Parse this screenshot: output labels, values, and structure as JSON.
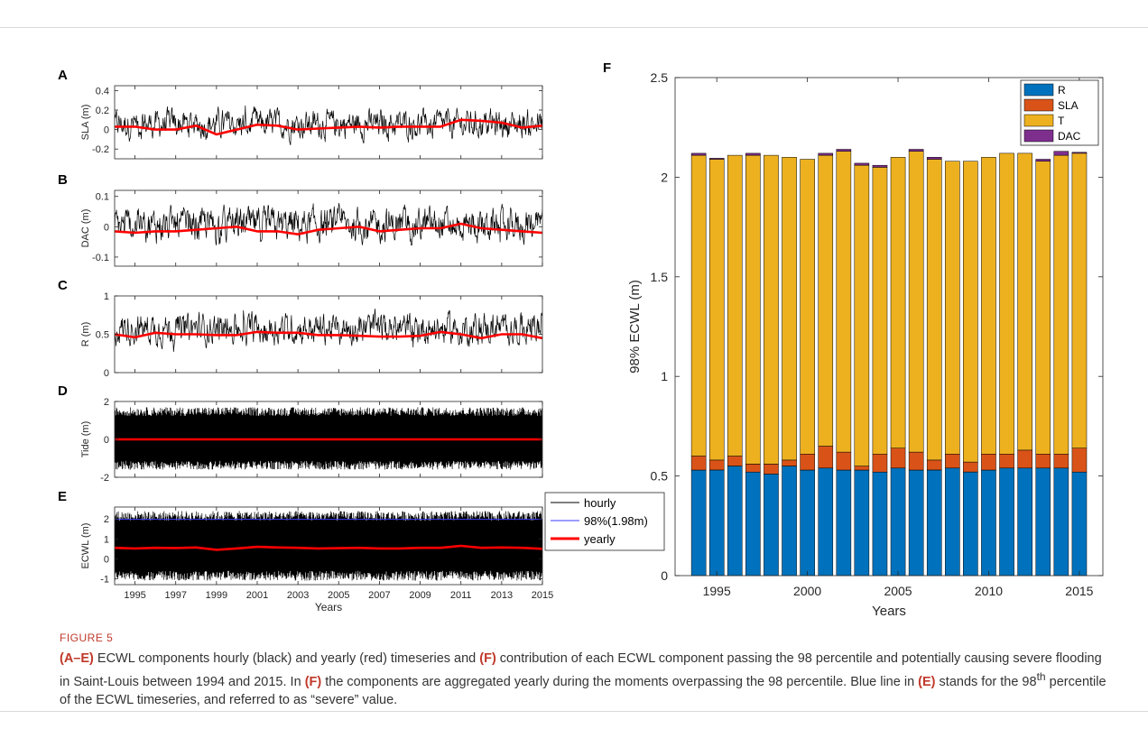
{
  "colors": {
    "hourly": "#000000",
    "yearly": "#ff0000",
    "threshold": "#3b3bff",
    "R": "#0072bd",
    "SLA": "#d95319",
    "T": "#edb120",
    "DAC": "#7e2f8e",
    "caption_accent": "#c0392b"
  },
  "chart_data": [
    {
      "panel": "A",
      "type": "line",
      "ylabel": "SLA (m)",
      "xlim": [
        1994,
        2015
      ],
      "ylim": [
        -0.3,
        0.45
      ],
      "yticks": [
        "-0.2",
        "0",
        "0.2",
        "0.4"
      ],
      "ytick_values": [
        -0.2,
        0,
        0.2,
        0.4
      ],
      "hourly_range": [
        -0.22,
        0.33
      ],
      "yearly": {
        "x": [
          1994,
          1995,
          1996,
          1997,
          1998,
          1999,
          2000,
          2001,
          2002,
          2003,
          2004,
          2005,
          2006,
          2007,
          2008,
          2009,
          2010,
          2011,
          2012,
          2013,
          2014,
          2015
        ],
        "y": [
          0.03,
          0.03,
          0.0,
          0.0,
          0.04,
          -0.05,
          0.0,
          0.05,
          0.04,
          0.0,
          0.01,
          0.02,
          0.03,
          0.02,
          0.03,
          0.03,
          0.03,
          0.1,
          0.09,
          0.07,
          0.02,
          0.04
        ]
      }
    },
    {
      "panel": "B",
      "type": "line",
      "ylabel": "DAC (m)",
      "xlim": [
        1994,
        2015
      ],
      "ylim": [
        -0.13,
        0.12
      ],
      "yticks": [
        "-0.1",
        "0",
        "0.1"
      ],
      "ytick_values": [
        -0.1,
        0,
        0.1
      ],
      "hourly_range": [
        -0.1,
        0.11
      ],
      "yearly": {
        "x": [
          1994,
          1995,
          1996,
          1997,
          1998,
          1999,
          2000,
          2001,
          2002,
          2003,
          2004,
          2005,
          2006,
          2007,
          2008,
          2009,
          2010,
          2011,
          2012,
          2013,
          2014,
          2015
        ],
        "y": [
          -0.015,
          -0.02,
          -0.015,
          -0.015,
          -0.01,
          -0.005,
          0.0,
          -0.015,
          -0.015,
          -0.025,
          -0.01,
          -0.005,
          0.0,
          -0.015,
          -0.01,
          -0.005,
          -0.005,
          0.01,
          -0.005,
          -0.01,
          -0.015,
          -0.02
        ]
      }
    },
    {
      "panel": "C",
      "type": "line",
      "ylabel": "R (m)",
      "xlim": [
        1994,
        2015
      ],
      "ylim": [
        0,
        1
      ],
      "yticks": [
        "0",
        "0.5",
        "1"
      ],
      "ytick_values": [
        0,
        0.5,
        1
      ],
      "hourly_range": [
        0.2,
        0.95
      ],
      "yearly": {
        "x": [
          1994,
          1995,
          1996,
          1997,
          1998,
          1999,
          2000,
          2001,
          2002,
          2003,
          2004,
          2005,
          2006,
          2007,
          2008,
          2009,
          2010,
          2011,
          2012,
          2013,
          2014,
          2015
        ],
        "y": [
          0.5,
          0.46,
          0.52,
          0.5,
          0.5,
          0.49,
          0.49,
          0.53,
          0.52,
          0.52,
          0.49,
          0.49,
          0.48,
          0.47,
          0.47,
          0.48,
          0.53,
          0.5,
          0.45,
          0.5,
          0.5,
          0.45
        ]
      }
    },
    {
      "panel": "D",
      "type": "line",
      "ylabel": "Tide (m)",
      "xlim": [
        1994,
        2015
      ],
      "ylim": [
        -2,
        2
      ],
      "yticks": [
        "-2",
        "0",
        "2"
      ],
      "ytick_values": [
        -2,
        0,
        2
      ],
      "hourly_range": [
        -1.6,
        1.7
      ],
      "yearly": {
        "x": [
          1994,
          1995,
          1996,
          1997,
          1998,
          1999,
          2000,
          2001,
          2002,
          2003,
          2004,
          2005,
          2006,
          2007,
          2008,
          2009,
          2010,
          2011,
          2012,
          2013,
          2014,
          2015
        ],
        "y": [
          0,
          0,
          0,
          0,
          0,
          0,
          0,
          0,
          0,
          0,
          0,
          0,
          0,
          0,
          0,
          0,
          0,
          0,
          0,
          0,
          0,
          0
        ]
      }
    },
    {
      "panel": "E",
      "type": "line",
      "ylabel": "ECWL (m)",
      "xlabel": "Years",
      "xlim": [
        1994,
        2015
      ],
      "ylim": [
        -1.3,
        2.6
      ],
      "yticks": [
        "-1",
        "0",
        "1",
        "2"
      ],
      "ytick_values": [
        -1,
        0,
        1,
        2
      ],
      "xticks": [
        "1995",
        "1997",
        "1999",
        "2001",
        "2003",
        "2005",
        "2007",
        "2009",
        "2011",
        "2013",
        "2015"
      ],
      "xtick_values": [
        1995,
        1997,
        1999,
        2001,
        2003,
        2005,
        2007,
        2009,
        2011,
        2013,
        2015
      ],
      "hourly_range": [
        -1.1,
        2.4
      ],
      "threshold": 1.98,
      "yearly": {
        "x": [
          1994,
          1995,
          1996,
          1997,
          1998,
          1999,
          2000,
          2001,
          2002,
          2003,
          2004,
          2005,
          2006,
          2007,
          2008,
          2009,
          2010,
          2011,
          2012,
          2013,
          2014,
          2015
        ],
        "y": [
          0.55,
          0.52,
          0.55,
          0.54,
          0.57,
          0.45,
          0.52,
          0.6,
          0.57,
          0.55,
          0.52,
          0.53,
          0.55,
          0.52,
          0.52,
          0.55,
          0.55,
          0.65,
          0.55,
          0.57,
          0.55,
          0.5
        ]
      },
      "legend": [
        "hourly",
        "98%(1.98m)",
        "yearly"
      ]
    },
    {
      "panel": "F",
      "type": "bar",
      "stacked": true,
      "xlabel": "Years",
      "ylabel": "98% ECWL (m)",
      "ylim": [
        0,
        2.5
      ],
      "yticks": [
        "0",
        "0.5",
        "1",
        "1.5",
        "2",
        "2.5"
      ],
      "ytick_values": [
        0,
        0.5,
        1,
        1.5,
        2,
        2.5
      ],
      "xticks": [
        "1995",
        "2000",
        "2005",
        "2010",
        "2015"
      ],
      "xtick_values": [
        1995,
        2000,
        2005,
        2010,
        2015
      ],
      "xlim": [
        1992.7,
        2016.3
      ],
      "legend_position": "top-right",
      "x": [
        1994,
        1995,
        1996,
        1997,
        1998,
        1999,
        2000,
        2001,
        2002,
        2003,
        2004,
        2005,
        2006,
        2007,
        2008,
        2009,
        2010,
        2011,
        2012,
        2013,
        2014,
        2015
      ],
      "series": [
        {
          "name": "R",
          "values": [
            0.53,
            0.53,
            0.55,
            0.52,
            0.51,
            0.55,
            0.53,
            0.54,
            0.53,
            0.53,
            0.52,
            0.54,
            0.53,
            0.53,
            0.54,
            0.52,
            0.53,
            0.54,
            0.54,
            0.54,
            0.54,
            0.52
          ]
        },
        {
          "name": "SLA",
          "values": [
            0.07,
            0.05,
            0.05,
            0.04,
            0.05,
            0.03,
            0.08,
            0.11,
            0.09,
            0.02,
            0.09,
            0.1,
            0.09,
            0.05,
            0.07,
            0.05,
            0.08,
            0.07,
            0.09,
            0.07,
            0.07,
            0.12
          ]
        },
        {
          "name": "T",
          "values": [
            1.51,
            1.51,
            1.51,
            1.55,
            1.55,
            1.52,
            1.48,
            1.46,
            1.51,
            1.51,
            1.44,
            1.46,
            1.51,
            1.51,
            1.47,
            1.51,
            1.49,
            1.51,
            1.49,
            1.47,
            1.5,
            1.48
          ]
        },
        {
          "name": "DAC",
          "values": [
            0.01,
            0.005,
            0.0,
            0.01,
            0.0,
            0.0,
            0.0,
            0.01,
            0.01,
            0.01,
            0.01,
            0.0,
            0.01,
            0.01,
            0.0,
            0.0,
            0.0,
            0.0,
            0.0,
            0.01,
            0.02,
            0.005
          ]
        }
      ]
    }
  ],
  "caption": {
    "label": "FIGURE 5",
    "p1": "(A–E)",
    "t1": " ECWL components hourly (black) and yearly (red) timeseries and ",
    "p2": "(F)",
    "t2": " contribution of each ECWL component passing the 98 percentile and potentially causing severe flooding in Saint-Louis between 1994 and 2015. In ",
    "p3": "(F)",
    "t3": " the components are aggregated yearly during the moments overpassing the 98 percentile. Blue line in ",
    "p4": "(E)",
    "t4": " stands for the 98",
    "sup": "th",
    "t5": " percentile of the ECWL timeseries, and referred to as “severe” value."
  }
}
